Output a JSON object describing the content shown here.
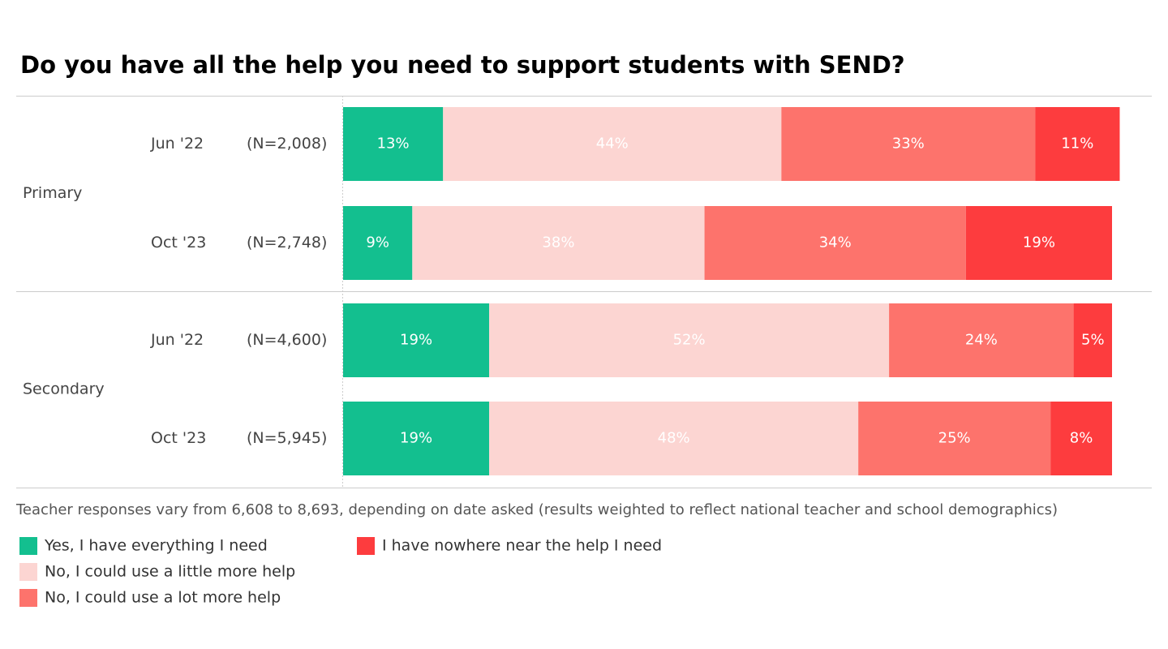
{
  "chart_data": {
    "type": "bar",
    "orientation": "horizontal",
    "stacked": true,
    "title": "Do you have all the help you need to support students with SEND?",
    "groups": [
      {
        "name": "Primary",
        "categories": [
          {
            "label": "Jun '22",
            "n": "(N=2,008)"
          },
          {
            "label": "Oct '23",
            "n": "(N=2,748)"
          }
        ]
      },
      {
        "name": "Secondary",
        "categories": [
          {
            "label": "Jun '22",
            "n": "(N=4,600)"
          },
          {
            "label": "Oct '23",
            "n": "(N=5,945)"
          }
        ]
      }
    ],
    "series": [
      {
        "name": "Yes, I have everything I need",
        "color": "#13bf8f",
        "values": [
          13,
          9,
          19,
          19
        ],
        "value_labels": [
          "13%",
          "9%",
          "19%",
          "19%"
        ]
      },
      {
        "name": "No, I could use a little more help",
        "color": "#fcd5d2",
        "values": [
          44,
          38,
          52,
          48
        ],
        "value_labels": [
          "44%",
          "38%",
          "52%",
          "48%"
        ]
      },
      {
        "name": "No, I could use a lot more help",
        "color": "#fd736c",
        "values": [
          33,
          34,
          24,
          25
        ],
        "value_labels": [
          "33%",
          "34%",
          "24%",
          "25%"
        ]
      },
      {
        "name": "I have nowhere near the help I need",
        "color": "#fd3c3e",
        "values": [
          11,
          19,
          5,
          8
        ],
        "value_labels": [
          "11%",
          "19%",
          "5%",
          "8%"
        ]
      }
    ],
    "xlim": [
      0,
      100
    ],
    "note": "Teacher responses vary from 6,608 to 8,693, depending on date asked (results weighted to reflect national teacher and school demographics)"
  }
}
